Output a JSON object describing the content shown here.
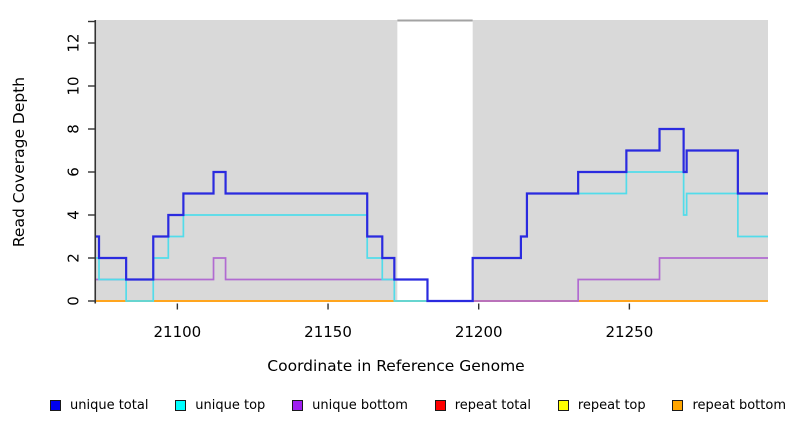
{
  "chart_data": {
    "type": "line",
    "step": true,
    "title": "",
    "xlabel": "Coordinate in Reference Genome",
    "ylabel": "Read Coverage Depth",
    "xlim": [
      21073,
      21296
    ],
    "ylim": [
      0,
      13
    ],
    "x_ticks": [
      21100,
      21150,
      21200,
      21250
    ],
    "y_ticks": [
      0,
      2,
      4,
      6,
      8,
      10,
      12
    ],
    "y_extra_ticks": [
      13
    ],
    "grid": false,
    "plot_bg_color": "#d9d9d9",
    "axis_color": "#333333",
    "gap_region": {
      "x1": 21173,
      "x2": 21198,
      "color": "#ffffff",
      "border_color": "#a3a3a3"
    },
    "legend_position": "bottom",
    "draw_order": [
      3,
      4,
      5,
      2,
      1,
      0
    ],
    "series": [
      {
        "name": "unique total",
        "color": "#0000ee",
        "line_color": "#2a2adf",
        "lw": 2.2,
        "points": [
          [
            21073,
            3
          ],
          [
            21074,
            2
          ],
          [
            21083,
            1
          ],
          [
            21092,
            3
          ],
          [
            21097,
            4
          ],
          [
            21102,
            5
          ],
          [
            21112,
            6
          ],
          [
            21116,
            5
          ],
          [
            21163,
            3
          ],
          [
            21168,
            2
          ],
          [
            21172,
            1
          ],
          [
            21183,
            0
          ],
          [
            21198,
            2
          ],
          [
            21214,
            3
          ],
          [
            21216,
            5
          ],
          [
            21233,
            6
          ],
          [
            21249,
            7
          ],
          [
            21260,
            8
          ],
          [
            21268,
            6
          ],
          [
            21269,
            7
          ],
          [
            21286,
            5
          ],
          [
            21296,
            5
          ]
        ]
      },
      {
        "name": "unique top",
        "color": "#00ffff",
        "line_color": "#52dcea",
        "lw": 1.7,
        "points": [
          [
            21073,
            2
          ],
          [
            21074,
            1
          ],
          [
            21083,
            0
          ],
          [
            21092,
            2
          ],
          [
            21097,
            3
          ],
          [
            21102,
            4
          ],
          [
            21163,
            2
          ],
          [
            21168,
            1
          ],
          [
            21172,
            0
          ],
          [
            21198,
            2
          ],
          [
            21214,
            3
          ],
          [
            21216,
            5
          ],
          [
            21249,
            6
          ],
          [
            21268,
            4
          ],
          [
            21269,
            5
          ],
          [
            21286,
            3
          ],
          [
            21296,
            3
          ]
        ]
      },
      {
        "name": "unique bottom",
        "color": "#a020f0",
        "line_color": "#b16bd1",
        "lw": 1.7,
        "points": [
          [
            21073,
            1
          ],
          [
            21112,
            2
          ],
          [
            21116,
            1
          ],
          [
            21183,
            0
          ],
          [
            21233,
            1
          ],
          [
            21260,
            2
          ],
          [
            21296,
            2
          ]
        ]
      },
      {
        "name": "repeat total",
        "color": "#ff0000",
        "line_color": "#dd2222",
        "lw": 1.5,
        "points": [
          [
            21073,
            0
          ],
          [
            21296,
            0
          ]
        ]
      },
      {
        "name": "repeat top",
        "color": "#ffff00",
        "line_color": "#eeee00",
        "lw": 1.5,
        "points": [
          [
            21073,
            0
          ],
          [
            21296,
            0
          ]
        ]
      },
      {
        "name": "repeat bottom",
        "color": "#ffa500",
        "line_color": "#ffa51e",
        "lw": 2,
        "points": [
          [
            21073,
            0
          ],
          [
            21296,
            0
          ]
        ]
      }
    ]
  }
}
